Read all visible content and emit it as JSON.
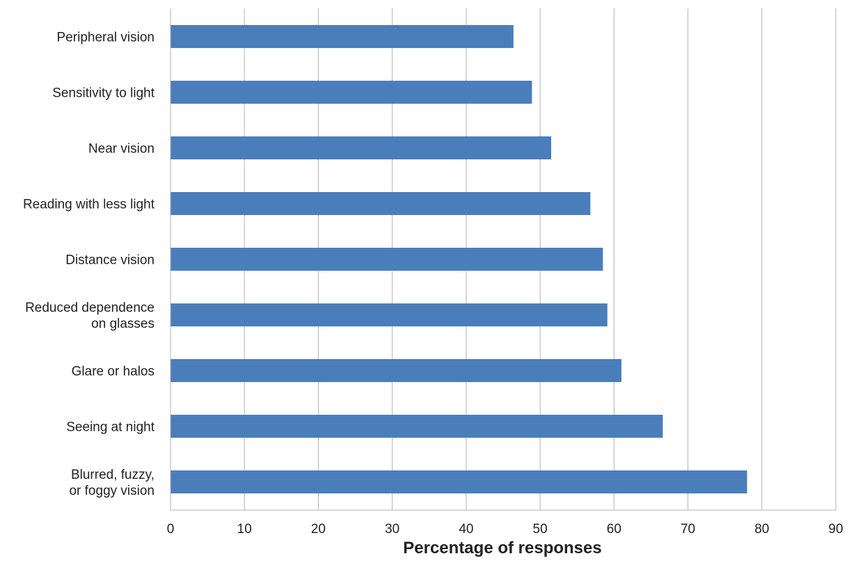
{
  "chart_data": {
    "type": "bar",
    "orientation": "horizontal",
    "title": "",
    "xlabel": "Percentage of responses",
    "ylabel": "",
    "xlim": [
      0,
      90
    ],
    "x_ticks": [
      "0",
      "10",
      "20",
      "30",
      "40",
      "50",
      "60",
      "70",
      "80",
      "90"
    ],
    "grid": "vertical",
    "bar_color": "#4a7ebb",
    "grid_color": "#b3b3b3",
    "categories": [
      [
        "Peripheral vision"
      ],
      [
        "Sensitivity to light"
      ],
      [
        "Near vision"
      ],
      [
        "Reading with less light"
      ],
      [
        "Distance vision"
      ],
      [
        "Reduced dependence",
        "on glasses"
      ],
      [
        "Glare or halos"
      ],
      [
        "Seeing at night"
      ],
      [
        "Blurred, fuzzy,",
        "or foggy vision"
      ]
    ],
    "values": [
      46.4,
      48.9,
      51.5,
      56.8,
      58.5,
      59.1,
      61.0,
      66.6,
      78.0
    ]
  }
}
